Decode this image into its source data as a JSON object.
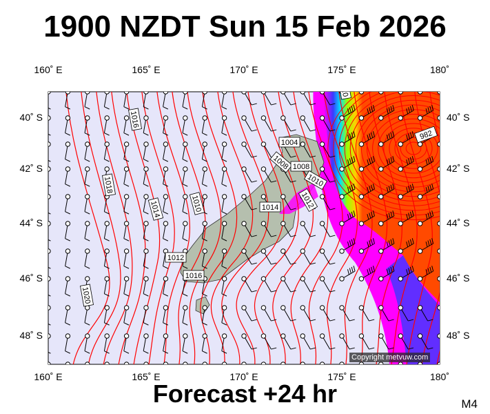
{
  "header": {
    "title": "1900 NZDT Sun 15 Feb 2026"
  },
  "footer": {
    "subtitle": "Forecast +24 hr",
    "model": "M4",
    "copyright": "Copyright metvuw.com"
  },
  "axes": {
    "lon_labels_top": [
      "160˚ E",
      "165˚ E",
      "170˚ E",
      "175˚ E",
      "180˚"
    ],
    "lon_labels_bottom": [
      "160˚ E",
      "165˚ E",
      "170˚ E",
      "175˚ E",
      "180˚"
    ],
    "lat_labels_left": [
      "40˚ S",
      "42˚ S",
      "44˚ S",
      "46˚ S",
      "48˚ S"
    ],
    "lat_labels_right": [
      "40˚ S",
      "42˚ S",
      "44˚ S",
      "46˚ S",
      "48˚ S"
    ]
  },
  "isobar_labels": [
    "1016",
    "1018",
    "1014",
    "1010",
    "1012",
    "1016",
    "1020",
    "1004",
    "1008",
    "1008",
    "1010",
    "1012",
    "1014",
    "982",
    "1010"
  ],
  "colors": {
    "ocean": "#e6e6fa",
    "isobar": "#ff0000",
    "land": "#b5bfae",
    "rain_heavy": "#ff4a00",
    "rain_light": "#ff00ff"
  }
}
